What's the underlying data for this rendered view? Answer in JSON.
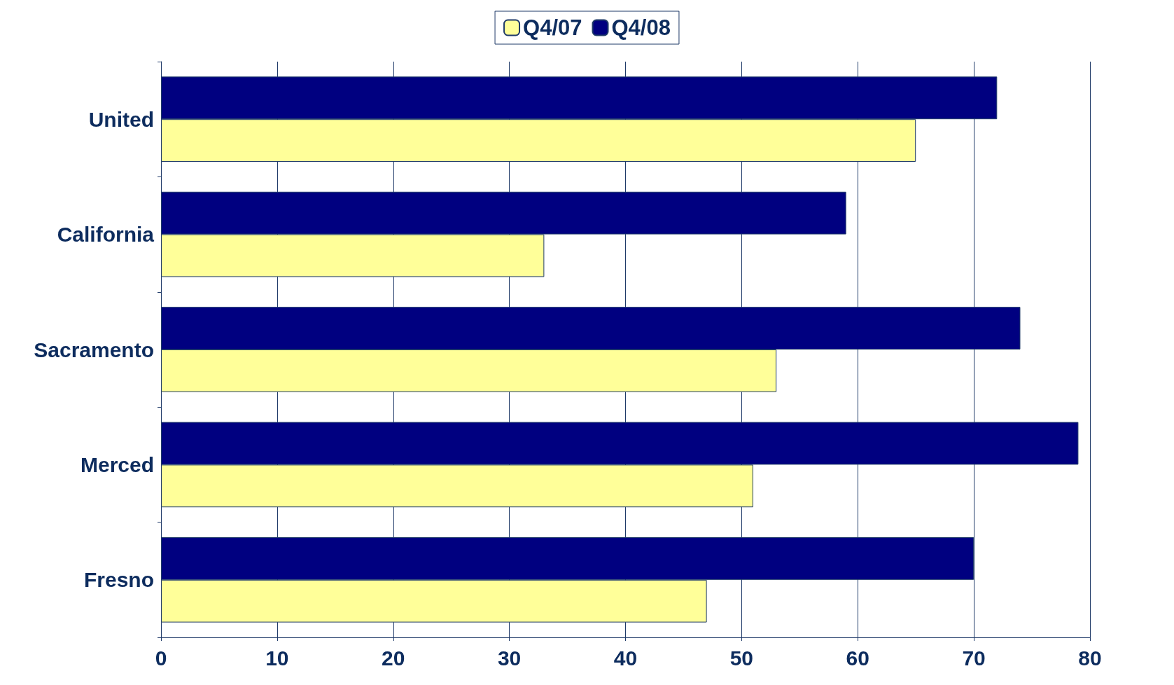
{
  "chart_data": {
    "type": "bar",
    "orientation": "horizontal",
    "categories": [
      "United",
      "California",
      "Sacramento",
      "Merced",
      "Fresno"
    ],
    "series": [
      {
        "name": "Q4/07",
        "color": "#ffff99",
        "values": [
          65,
          33,
          53,
          51,
          47
        ]
      },
      {
        "name": "Q4/08",
        "color": "#000080",
        "values": [
          72,
          59,
          74,
          79,
          70
        ]
      }
    ],
    "xlim": [
      0,
      80
    ],
    "xticks": [
      0,
      10,
      20,
      30,
      40,
      50,
      60,
      70,
      80
    ],
    "grid": "x",
    "legend": "top"
  }
}
